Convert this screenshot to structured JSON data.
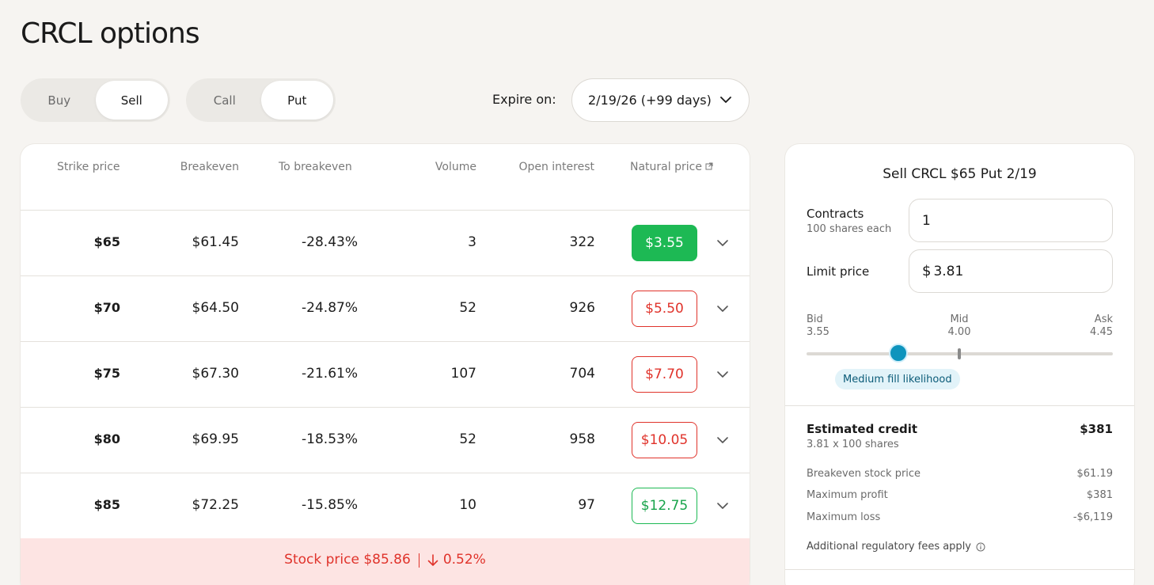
{
  "page": {
    "title": "CRCL options"
  },
  "controls": {
    "side": {
      "options": [
        "Buy",
        "Sell"
      ],
      "selected": "Sell"
    },
    "type": {
      "options": [
        "Call",
        "Put"
      ],
      "selected": "Put"
    },
    "expire_label": "Expire on:",
    "expire_value": "2/19/26 (+99 days)"
  },
  "table": {
    "headers": [
      "Strike price",
      "Breakeven",
      "To breakeven",
      "Volume",
      "Open interest",
      "Natural price"
    ],
    "rows": [
      {
        "strike": "$65",
        "breakeven": "$61.45",
        "to_breakeven": "-28.43%",
        "volume": "3",
        "open_interest": "322",
        "natural_price": "$3.55",
        "style": "solid"
      },
      {
        "strike": "$70",
        "breakeven": "$64.50",
        "to_breakeven": "-24.87%",
        "volume": "52",
        "open_interest": "926",
        "natural_price": "$5.50",
        "style": "red"
      },
      {
        "strike": "$75",
        "breakeven": "$67.30",
        "to_breakeven": "-21.61%",
        "volume": "107",
        "open_interest": "704",
        "natural_price": "$7.70",
        "style": "red"
      },
      {
        "strike": "$80",
        "breakeven": "$69.95",
        "to_breakeven": "-18.53%",
        "volume": "52",
        "open_interest": "958",
        "natural_price": "$10.05",
        "style": "red"
      },
      {
        "strike": "$85",
        "breakeven": "$72.25",
        "to_breakeven": "-15.85%",
        "volume": "10",
        "open_interest": "97",
        "natural_price": "$12.75",
        "style": "green"
      }
    ],
    "stock_bar": {
      "label": "Stock price $85.86",
      "change": "0.52%",
      "direction": "down",
      "color": "#e0332b"
    }
  },
  "order": {
    "title": "Sell CRCL $65 Put 2/19",
    "contracts_label": "Contracts",
    "contracts_sub": "100 shares each",
    "contracts_value": "1",
    "limit_label": "Limit price",
    "limit_currency": "$",
    "limit_value": "3.81",
    "slider": {
      "bid_label": "Bid",
      "bid_value": "3.55",
      "mid_label": "Mid",
      "mid_value": "4.00",
      "ask_label": "Ask",
      "ask_value": "4.45",
      "current": 3.81,
      "fill_label": "Medium fill likelihood"
    },
    "estimated_label": "Estimated credit",
    "estimated_value": "$381",
    "estimated_sub": "3.81 x 100 shares",
    "details": [
      {
        "label": "Breakeven stock price",
        "value": "$61.19"
      },
      {
        "label": "Maximum profit",
        "value": "$381"
      },
      {
        "label": "Maximum loss",
        "value": "-$6,119"
      }
    ],
    "fees_label": "Additional regulatory fees apply"
  },
  "colors": {
    "accent_green": "#1db954",
    "accent_red": "#e0332b",
    "slider_knob": "#0e94bd"
  },
  "icons": {
    "dropdown": "chevron-down-icon",
    "external": "external-link-icon",
    "down_arrow": "arrow-down-icon",
    "info": "info-icon"
  }
}
